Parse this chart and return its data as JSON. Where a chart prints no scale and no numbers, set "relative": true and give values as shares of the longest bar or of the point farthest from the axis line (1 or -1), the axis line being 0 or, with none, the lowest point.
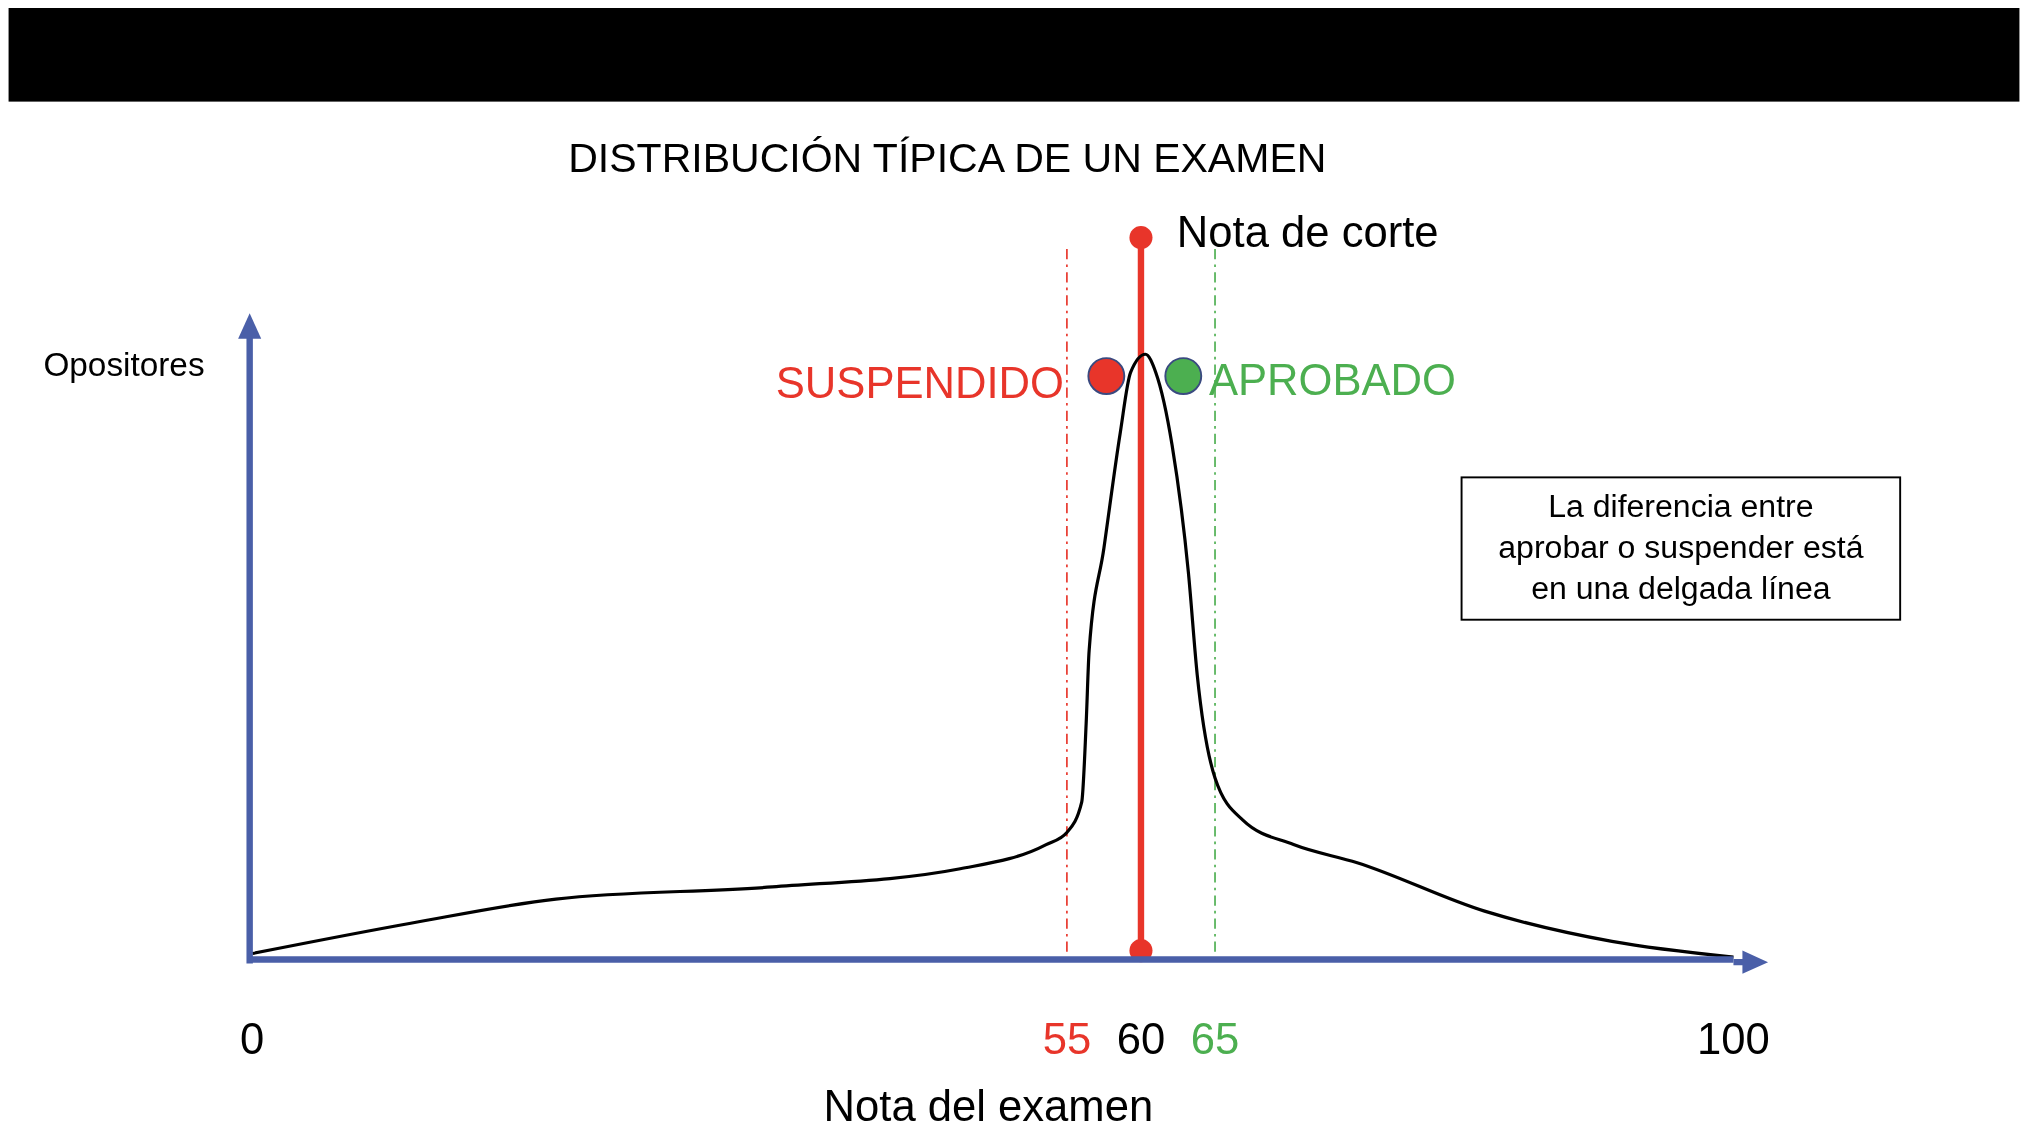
{
  "chart_data": {
    "type": "line",
    "title": "DISTRIBUCIÓN TÍPICA DE UN EXAMEN",
    "xlabel": "Nota del examen",
    "ylabel": "Opositores",
    "relative": true,
    "x": [
      0,
      10.7,
      20.5,
      35.1,
      47.8,
      53.6,
      55,
      56.0,
      56.3,
      56.5,
      57.5,
      58.6,
      59.3,
      60.3,
      61.0,
      62.1,
      63.2,
      63.8,
      65,
      66.9,
      70.3,
      74.6,
      83.2,
      91.8,
      100
    ],
    "series": [
      {
        "color": "#000000",
        "values": [
          0.01,
          0.06,
          0.1,
          0.12,
          0.15,
          0.19,
          0.21,
          0.26,
          0.39,
          0.51,
          0.68,
          0.87,
          0.97,
          1.0,
          0.97,
          0.85,
          0.64,
          0.47,
          0.3,
          0.23,
          0.19,
          0.16,
          0.08,
          0.03,
          0.004
        ]
      }
    ],
    "xlim": [
      0,
      100
    ],
    "xticks": [
      0,
      55,
      60,
      65,
      100
    ],
    "ref_lines": [
      {
        "axis": "x",
        "value": 55,
        "color": "#e8352a",
        "line_style": "dashed"
      },
      {
        "axis": "x",
        "value": 60,
        "label": "Nota de corte",
        "color": "#e8352a",
        "line_style": "solid"
      },
      {
        "axis": "x",
        "value": 65,
        "color": "#4caf50",
        "line_style": "dashed"
      }
    ],
    "annotations": [
      "SUSPENDIDO",
      "APROBADO",
      "La diferencia entre aprobar o suspender está en una delgada línea"
    ],
    "grid": false,
    "marker": "none",
    "line_style": "solid"
  }
}
